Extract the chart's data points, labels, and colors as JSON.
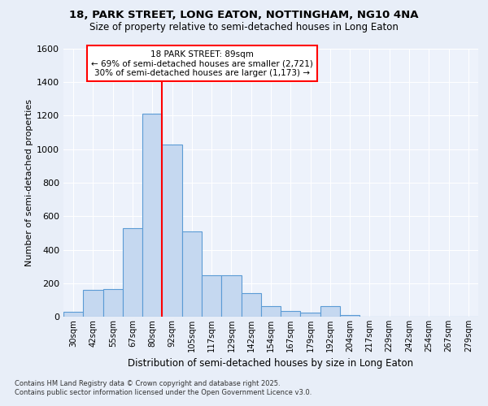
{
  "title1": "18, PARK STREET, LONG EATON, NOTTINGHAM, NG10 4NA",
  "title2": "Size of property relative to semi-detached houses in Long Eaton",
  "xlabel": "Distribution of semi-detached houses by size in Long Eaton",
  "ylabel": "Number of semi-detached properties",
  "bar_labels": [
    "30sqm",
    "42sqm",
    "55sqm",
    "67sqm",
    "80sqm",
    "92sqm",
    "105sqm",
    "117sqm",
    "129sqm",
    "142sqm",
    "154sqm",
    "167sqm",
    "179sqm",
    "192sqm",
    "204sqm",
    "217sqm",
    "229sqm",
    "242sqm",
    "254sqm",
    "267sqm",
    "279sqm"
  ],
  "bar_values": [
    30,
    160,
    165,
    530,
    1210,
    1030,
    510,
    245,
    245,
    140,
    65,
    35,
    25,
    65,
    8,
    0,
    0,
    0,
    0,
    0,
    0
  ],
  "bar_color": "#c5d8f0",
  "bar_edge_color": "#5b9bd5",
  "vline_color": "red",
  "vline_pos": 5.0,
  "annotation_title": "18 PARK STREET: 89sqm",
  "annotation_line1": "← 69% of semi-detached houses are smaller (2,721)",
  "annotation_line2": "30% of semi-detached houses are larger (1,173) →",
  "ylim": [
    0,
    1600
  ],
  "yticks": [
    0,
    200,
    400,
    600,
    800,
    1000,
    1200,
    1400,
    1600
  ],
  "footer1": "Contains HM Land Registry data © Crown copyright and database right 2025.",
  "footer2": "Contains public sector information licensed under the Open Government Licence v3.0.",
  "bg_color": "#e8eef8",
  "plot_bg": "#edf2fb",
  "grid_color": "#ffffff"
}
